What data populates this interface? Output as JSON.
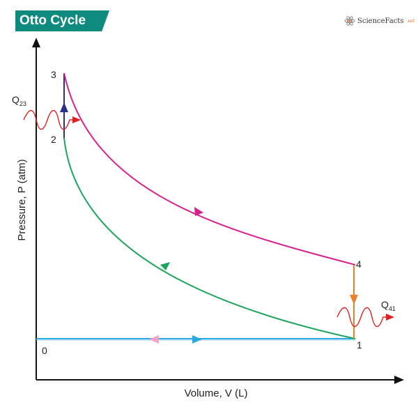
{
  "title": "Otto Cycle",
  "brand": {
    "name": "ScienceFacts",
    "suffix": ".net",
    "icon": "atom-icon"
  },
  "axes": {
    "x_label": "Volume, V (L)",
    "y_label": "Pressure, P (atm)"
  },
  "points": {
    "p0": "0",
    "p1": "1",
    "p2": "2",
    "p3": "3",
    "p4": "4"
  },
  "heat": {
    "q23": {
      "main": "Q",
      "sub": "23"
    },
    "q41": {
      "main": "Q",
      "sub": "41"
    }
  },
  "colors": {
    "title_bg": "#0f8a7e",
    "process_1_2": "#1aa55a",
    "process_2_3": "#2a2f8c",
    "process_3_4": "#d8208f",
    "process_4_1": "#ef7f2a",
    "intake_line": "#2aa8e6",
    "exhaust_arrow": "#f4a3c4",
    "heat_arrow": "#e02020"
  }
}
